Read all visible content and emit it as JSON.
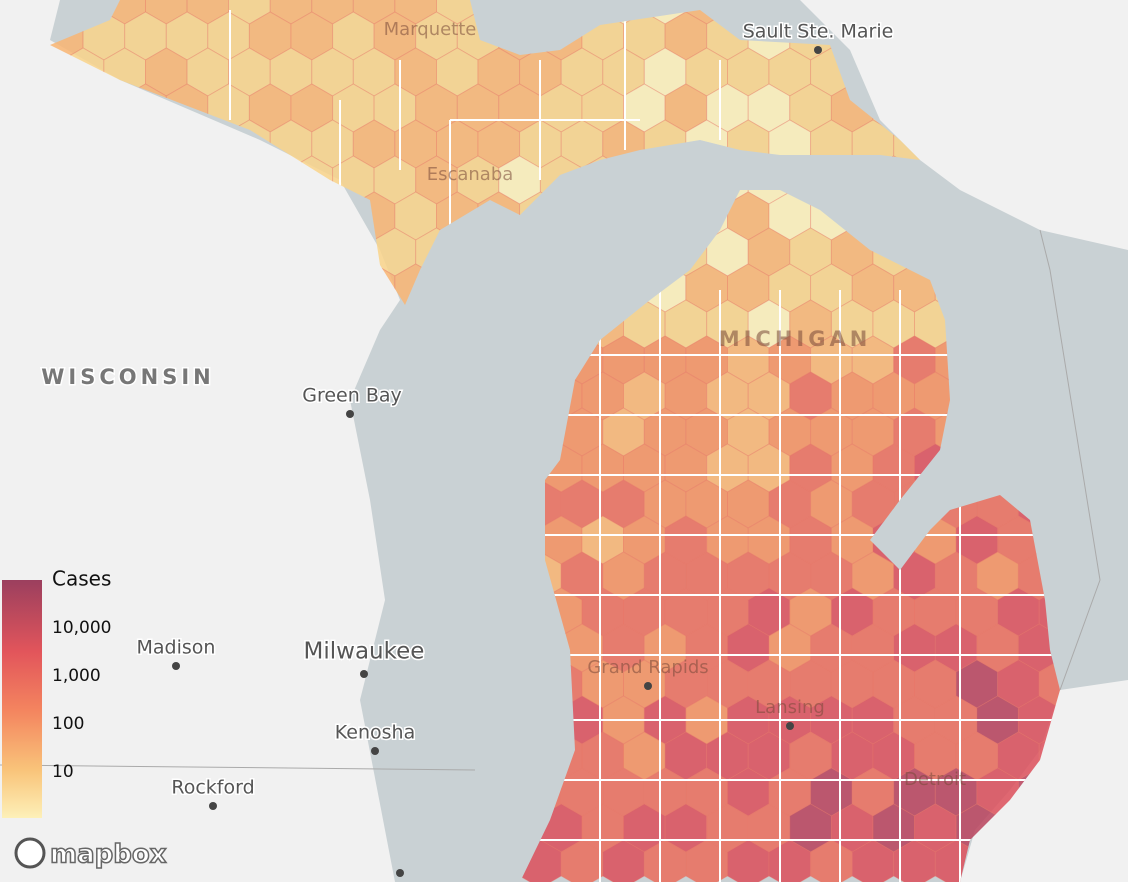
{
  "places": [
    {
      "label": "Marquette"
    },
    {
      "label": "Sault Ste. Marie"
    },
    {
      "label": "Escanaba"
    },
    {
      "label": "MICHIGAN"
    },
    {
      "label": "WISCONSIN"
    },
    {
      "label": "Green Bay"
    },
    {
      "label": "Madison"
    },
    {
      "label": "Milwaukee"
    },
    {
      "label": "Kenosha"
    },
    {
      "label": "Rockford"
    },
    {
      "label": "Grand Rapids"
    },
    {
      "label": "Lansing"
    },
    {
      "label": "Detroit"
    }
  ],
  "legend": {
    "title": "Cases",
    "labels": [
      "10,000",
      "1,000",
      "100",
      "10"
    ]
  },
  "attribution": "mapbox"
}
